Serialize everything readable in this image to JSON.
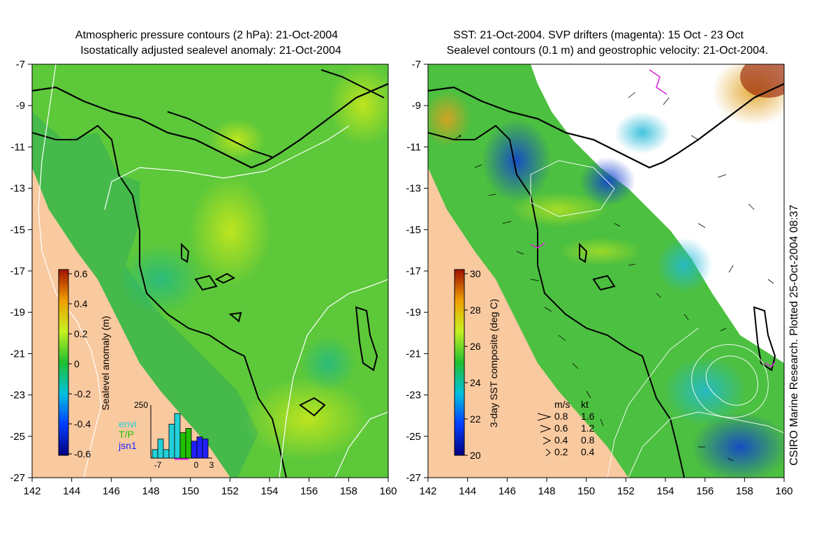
{
  "left_panel": {
    "title_line1": "Atmospheric pressure contours (2 hPa): 21-Oct-2004",
    "title_line2": "Isostatically adjusted sealevel anomaly: 21-Oct-2004",
    "colorbar": {
      "label": "Sealevel anomaly (m)",
      "ticks": [
        "0.6",
        "0.4",
        "0.2",
        "0",
        "-0.2",
        "-0.4",
        "-0.6"
      ],
      "range": [
        -0.6,
        0.6
      ]
    },
    "histogram": {
      "y_tick": "250",
      "x_ticks": [
        "-7",
        "0",
        "3"
      ],
      "legend": [
        {
          "label": "envi",
          "color": "#22d0d8"
        },
        {
          "label": "T/P",
          "color": "#22c000"
        },
        {
          "label": "jsn1",
          "color": "#2020ff"
        }
      ],
      "bars": [
        {
          "series": "envi",
          "value": 40
        },
        {
          "series": "envi",
          "value": 90
        },
        {
          "series": "envi",
          "value": 40
        },
        {
          "series": "envi",
          "value": 160
        },
        {
          "series": "envi",
          "value": 210
        },
        {
          "series": "T/P",
          "value": 120
        },
        {
          "series": "T/P",
          "value": 140
        },
        {
          "series": "jsn1",
          "value": 80
        },
        {
          "series": "jsn1",
          "value": 100
        },
        {
          "series": "jsn1",
          "value": 90
        }
      ]
    }
  },
  "right_panel": {
    "title_line1": "SST: 21-Oct-2004. SVP drifters (magenta): 15 Oct - 23 Oct",
    "title_line2": "Sealevel contours (0.1 m) and geostrophic velocity: 21-Oct-2004.",
    "colorbar": {
      "label": "3-day SST composite (deg C)",
      "ticks": [
        "30",
        "28",
        "26",
        "24",
        "22",
        "20"
      ],
      "range": [
        20,
        30
      ]
    },
    "velocity_legend": {
      "header_ms": "m/s",
      "header_kt": "kt",
      "rows": [
        {
          "ms": "0.8",
          "kt": "1.6"
        },
        {
          "ms": "0.6",
          "kt": "1.2"
        },
        {
          "ms": "0.4",
          "kt": "0.8"
        },
        {
          "ms": "0.2",
          "kt": "0.4"
        }
      ]
    },
    "credit": "CSIRO Marine Research. Plotted 25-Oct-2004 08:37"
  },
  "axes": {
    "x_ticks": [
      "142",
      "144",
      "146",
      "148",
      "150",
      "152",
      "154",
      "156",
      "158",
      "160"
    ],
    "y_ticks": [
      "-7",
      "-9",
      "-11",
      "-13",
      "-15",
      "-17",
      "-19",
      "-21",
      "-23",
      "-25",
      "-27"
    ],
    "x_range": [
      142,
      160
    ],
    "y_range": [
      -27,
      -7
    ]
  },
  "colors": {
    "land": "#f9c9a0",
    "ocean_base": "#5cc83a",
    "coast": "#000000",
    "pressure_contour": "#ffffff"
  }
}
